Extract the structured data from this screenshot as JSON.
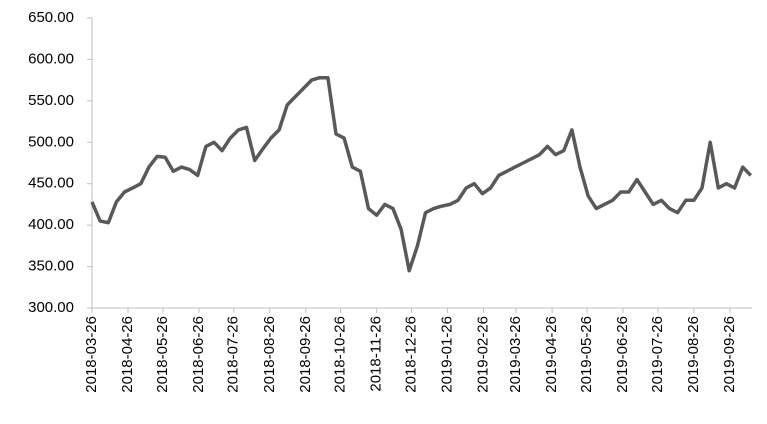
{
  "chart_data": {
    "type": "line",
    "x": [
      "2018-03-26",
      "2018-04-02",
      "2018-04-09",
      "2018-04-16",
      "2018-04-23",
      "2018-04-30",
      "2018-05-07",
      "2018-05-14",
      "2018-05-21",
      "2018-05-28",
      "2018-06-04",
      "2018-06-11",
      "2018-06-18",
      "2018-06-25",
      "2018-07-02",
      "2018-07-09",
      "2018-07-16",
      "2018-07-23",
      "2018-07-30",
      "2018-08-06",
      "2018-08-13",
      "2018-08-20",
      "2018-08-27",
      "2018-09-03",
      "2018-09-10",
      "2018-09-17",
      "2018-09-24",
      "2018-10-01",
      "2018-10-08",
      "2018-10-15",
      "2018-10-22",
      "2018-10-29",
      "2018-11-05",
      "2018-11-12",
      "2018-11-19",
      "2018-11-26",
      "2018-12-03",
      "2018-12-10",
      "2018-12-17",
      "2018-12-24",
      "2018-12-31",
      "2019-01-07",
      "2019-01-14",
      "2019-01-21",
      "2019-01-28",
      "2019-02-04",
      "2019-02-11",
      "2019-02-18",
      "2019-02-25",
      "2019-03-04",
      "2019-03-11",
      "2019-03-18",
      "2019-03-25",
      "2019-04-01",
      "2019-04-08",
      "2019-04-15",
      "2019-04-22",
      "2019-04-29",
      "2019-05-06",
      "2019-05-13",
      "2019-05-20",
      "2019-05-27",
      "2019-06-03",
      "2019-06-10",
      "2019-06-17",
      "2019-06-24",
      "2019-07-01",
      "2019-07-08",
      "2019-07-15",
      "2019-07-22",
      "2019-07-29",
      "2019-08-05",
      "2019-08-12",
      "2019-08-19",
      "2019-08-26",
      "2019-09-02",
      "2019-09-09",
      "2019-09-16",
      "2019-09-23",
      "2019-09-30",
      "2019-10-07",
      "2019-10-14"
    ],
    "values": [
      428,
      405,
      403,
      428,
      440,
      445,
      450,
      470,
      483,
      482,
      465,
      470,
      467,
      460,
      495,
      500,
      490,
      505,
      515,
      518,
      478,
      492,
      505,
      515,
      545,
      555,
      565,
      575,
      578,
      578,
      510,
      505,
      470,
      465,
      420,
      412,
      425,
      420,
      395,
      345,
      375,
      415,
      420,
      423,
      425,
      430,
      445,
      450,
      438,
      445,
      460,
      465,
      470,
      475,
      480,
      485,
      495,
      485,
      490,
      515,
      470,
      435,
      420,
      425,
      430,
      440,
      440,
      455,
      440,
      425,
      430,
      420,
      415,
      430,
      430,
      445,
      500,
      445,
      450,
      445,
      470,
      460
    ],
    "color": "#595959",
    "xlim": [
      "2018-03-26",
      "2019-10-15"
    ],
    "xticks": [
      "2018-03-26",
      "2018-04-26",
      "2018-05-26",
      "2018-06-26",
      "2018-07-26",
      "2018-08-26",
      "2018-09-26",
      "2018-10-26",
      "2018-11-26",
      "2018-12-26",
      "2019-01-26",
      "2019-02-26",
      "2019-03-26",
      "2019-04-26",
      "2019-05-26",
      "2019-06-26",
      "2019-07-26",
      "2019-08-26",
      "2019-09-26"
    ],
    "ylim": [
      300,
      650
    ],
    "yticks": [
      {
        "value": 300,
        "label": "300.00"
      },
      {
        "value": 350,
        "label": "350.00"
      },
      {
        "value": 400,
        "label": "400.00"
      },
      {
        "value": 450,
        "label": "450.00"
      },
      {
        "value": 500,
        "label": "500.00"
      },
      {
        "value": 550,
        "label": "550.00"
      },
      {
        "value": 600,
        "label": "600.00"
      },
      {
        "value": 650,
        "label": "650.00"
      }
    ],
    "grid": false
  }
}
